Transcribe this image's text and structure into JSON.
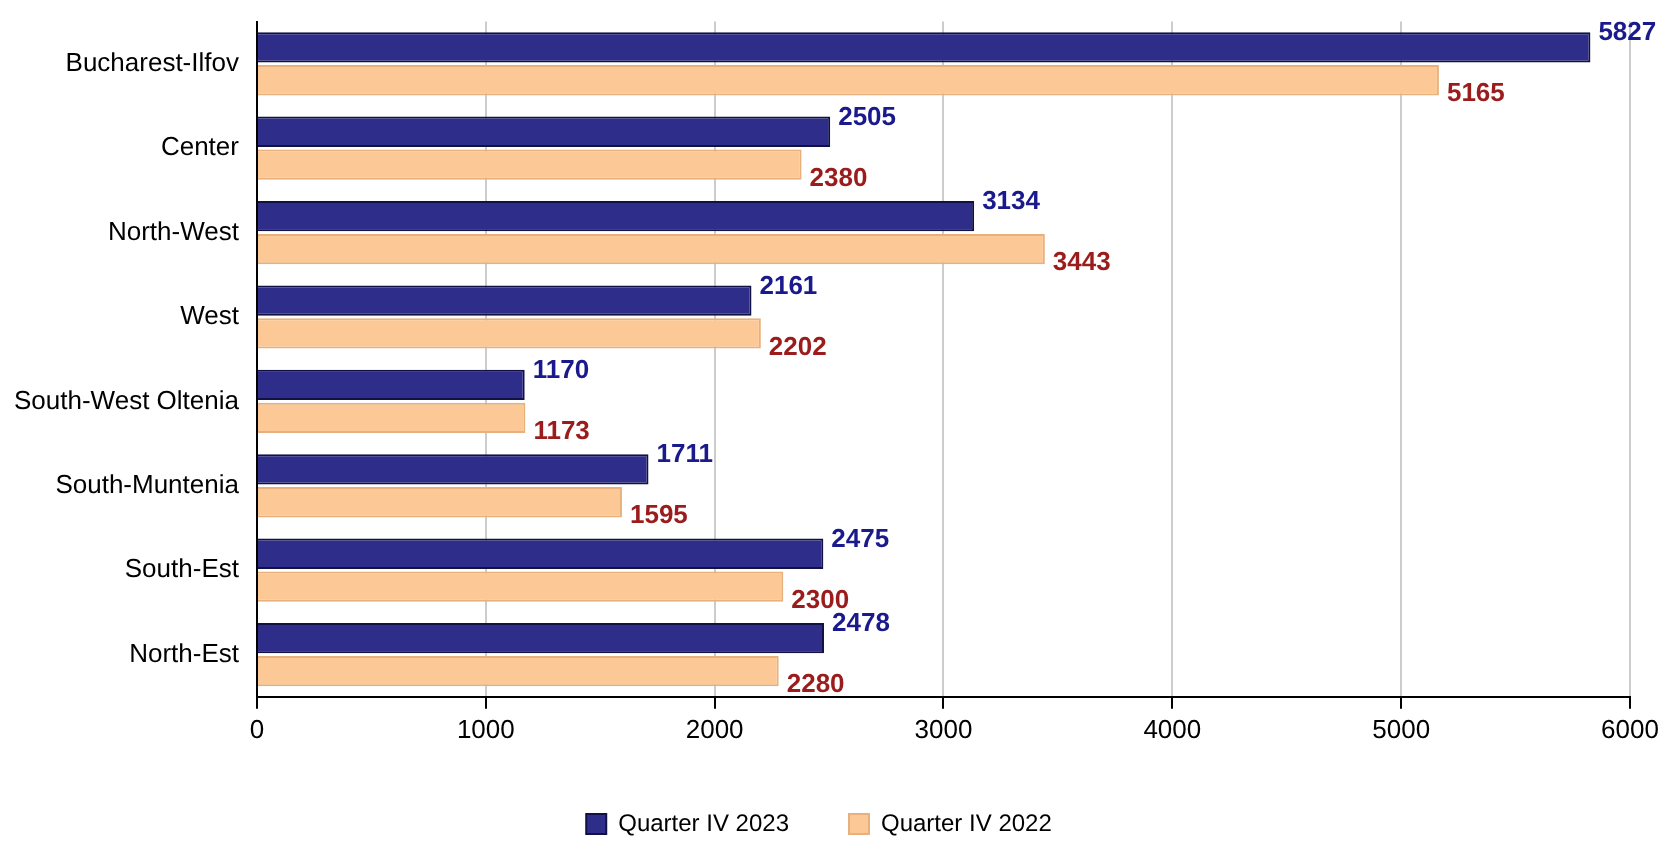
{
  "chart_data": {
    "type": "bar",
    "orientation": "horizontal",
    "categories": [
      "Bucharest-Ilfov",
      "Center",
      "North-West",
      "West",
      "South-West Oltenia",
      "South-Muntenia",
      "South-Est",
      "North-Est"
    ],
    "series": [
      {
        "name": "Quarter IV 2023",
        "color": "#2e2e8a",
        "values": [
          5827,
          2505,
          3134,
          2161,
          1170,
          1711,
          2475,
          2478
        ]
      },
      {
        "name": "Quarter IV 2022",
        "color": "#fcc896",
        "values": [
          5165,
          2380,
          3443,
          2202,
          1173,
          1595,
          2300,
          2280
        ]
      }
    ],
    "xlim": [
      0,
      6000
    ],
    "xticks": [
      0,
      1000,
      2000,
      3000,
      4000,
      5000,
      6000
    ],
    "grid": "x",
    "legend": "bottom",
    "data_labels": true
  }
}
